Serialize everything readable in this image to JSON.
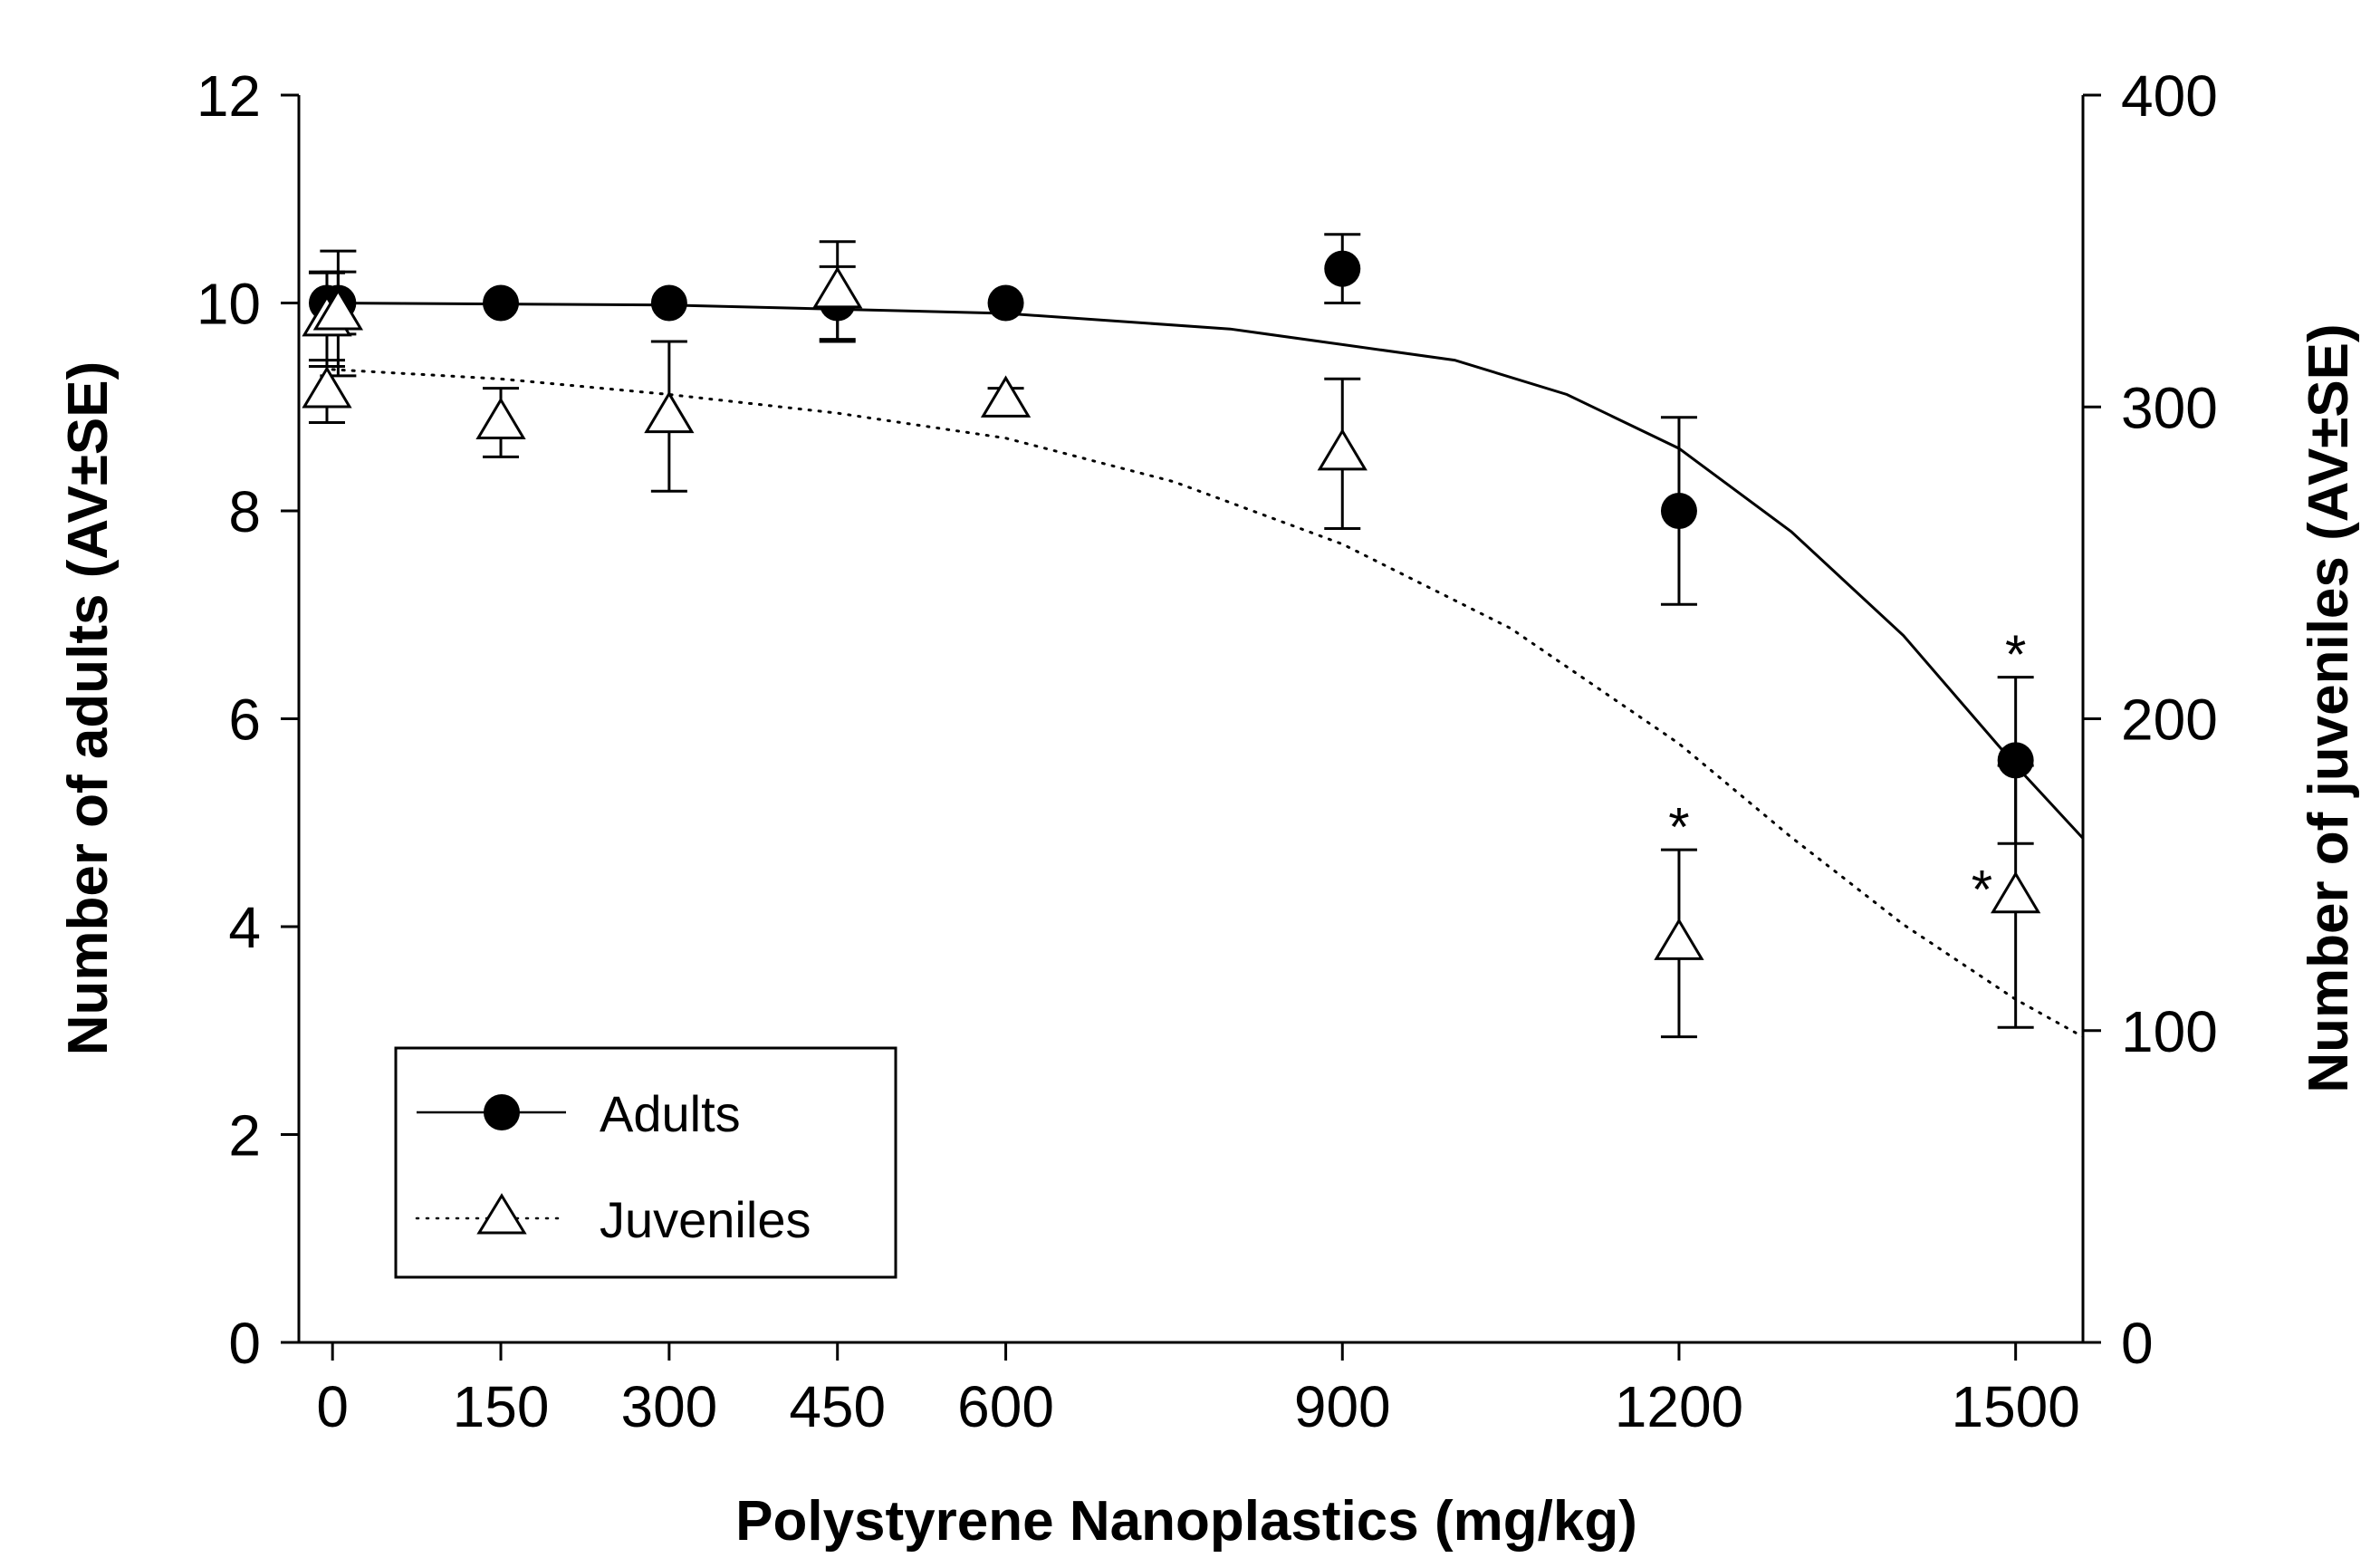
{
  "chart_data": {
    "type": "scatter",
    "title": "",
    "xlabel": "Polystyrene Nanoplastics (mg/kg)",
    "ylabel_left": "Number of adults (AV±SE)",
    "ylabel_right": "Number of juveniles (AV±SE)",
    "xlim": [
      -30,
      1560
    ],
    "ylim_left": [
      0,
      12
    ],
    "ylim_right": [
      0,
      400
    ],
    "x_ticks": [
      0,
      150,
      300,
      450,
      600,
      900,
      1200,
      1500
    ],
    "x_tick_labels": [
      "0",
      "150",
      "300",
      "450",
      "600",
      "900",
      "1200",
      "1500"
    ],
    "y_left_ticks": [
      0,
      2,
      4,
      6,
      8,
      10,
      12
    ],
    "y_left_tick_labels": [
      "0",
      "2",
      "4",
      "6",
      "8",
      "10",
      "12"
    ],
    "y_right_ticks": [
      0,
      100,
      200,
      300,
      400
    ],
    "y_right_tick_labels": [
      "0",
      "100",
      "200",
      "300",
      "400"
    ],
    "grid": false,
    "legend_position": "bottom-left",
    "series": [
      {
        "name": "Adults",
        "axis": "left",
        "marker": "filled-circle",
        "line_style": "solid",
        "points": [
          {
            "x": -5,
            "y": 10.0,
            "err": 0.3
          },
          {
            "x": 5,
            "y": 10.0,
            "err": 0.3
          },
          {
            "x": 150,
            "y": 10.0,
            "err": 0
          },
          {
            "x": 300,
            "y": 10.0,
            "err": 0
          },
          {
            "x": 450,
            "y": 10.0,
            "err": 0.35
          },
          {
            "x": 600,
            "y": 10.0,
            "err": 0
          },
          {
            "x": 900,
            "y": 10.33,
            "err": 0.33
          },
          {
            "x": 1200,
            "y": 8.0,
            "err": 0.9
          },
          {
            "x": 1500,
            "y": 5.6,
            "err": 0.8
          }
        ],
        "fit": [
          {
            "x": 0,
            "y": 10.0
          },
          {
            "x": 300,
            "y": 9.98
          },
          {
            "x": 600,
            "y": 9.9
          },
          {
            "x": 800,
            "y": 9.75
          },
          {
            "x": 1000,
            "y": 9.45
          },
          {
            "x": 1100,
            "y": 9.12
          },
          {
            "x": 1200,
            "y": 8.6
          },
          {
            "x": 1300,
            "y": 7.8
          },
          {
            "x": 1400,
            "y": 6.8
          },
          {
            "x": 1500,
            "y": 5.55
          },
          {
            "x": 1560,
            "y": 4.85
          }
        ]
      },
      {
        "name": "Juveniles",
        "axis": "right",
        "marker": "open-triangle",
        "line_style": "dotted",
        "points": [
          {
            "x": -5,
            "y": 305,
            "err": 10
          },
          {
            "x": -5,
            "y": 328,
            "err": 15
          },
          {
            "x": 5,
            "y": 330,
            "err": 20
          },
          {
            "x": 150,
            "y": 295,
            "err": 11
          },
          {
            "x": 300,
            "y": 297,
            "err": 24
          },
          {
            "x": 450,
            "y": 337,
            "err": 16
          },
          {
            "x": 600,
            "y": 302,
            "err": 4
          },
          {
            "x": 900,
            "y": 285,
            "err": 24
          },
          {
            "x": 1200,
            "y": 128,
            "err": 30
          },
          {
            "x": 1500,
            "y": 143,
            "err": 42
          }
        ],
        "fit": [
          {
            "x": 0,
            "y": 312
          },
          {
            "x": 150,
            "y": 309
          },
          {
            "x": 300,
            "y": 304
          },
          {
            "x": 450,
            "y": 298
          },
          {
            "x": 600,
            "y": 290
          },
          {
            "x": 750,
            "y": 276
          },
          {
            "x": 900,
            "y": 256
          },
          {
            "x": 1050,
            "y": 229
          },
          {
            "x": 1200,
            "y": 192
          },
          {
            "x": 1300,
            "y": 162
          },
          {
            "x": 1400,
            "y": 134
          },
          {
            "x": 1500,
            "y": 110
          },
          {
            "x": 1560,
            "y": 98
          }
        ]
      }
    ],
    "annotations": [
      {
        "text": "*",
        "x": 1500,
        "axis": "left",
        "y": 6.7,
        "note": "Adults 1500"
      },
      {
        "text": "*",
        "x": 1200,
        "axis": "right",
        "y": 168,
        "note": "Juveniles 1200"
      },
      {
        "text": "*",
        "x": 1470,
        "axis": "right",
        "y": 148,
        "note": "Juveniles 1500"
      }
    ]
  },
  "legend": {
    "adults_label": "Adults",
    "juveniles_label": "Juveniles"
  }
}
